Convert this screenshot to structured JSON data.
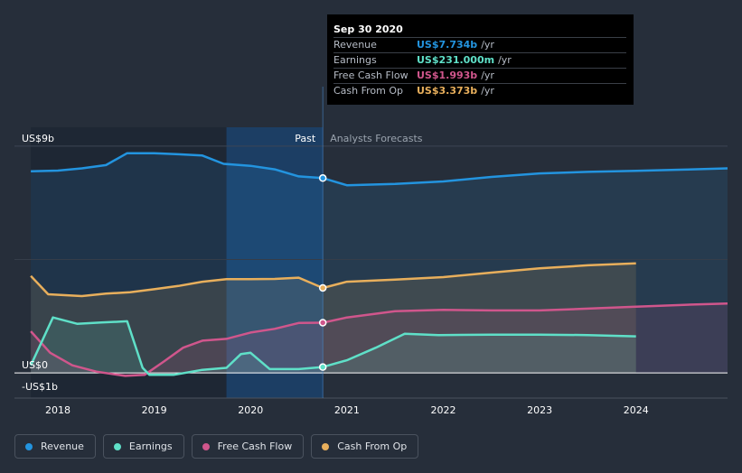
{
  "chart_data": {
    "type": "line",
    "title": "",
    "y_unit": "US$",
    "ylim": [
      -1,
      9.75
    ],
    "y_ticks": [
      {
        "value": 9,
        "label": "US$9b"
      },
      {
        "value": 0,
        "label": "US$0"
      },
      {
        "value": -1,
        "label": "-US$1b"
      }
    ],
    "xlim": [
      2017.55,
      2024.95
    ],
    "x_ticks": [
      {
        "value": 2018,
        "label": "2018"
      },
      {
        "value": 2019,
        "label": "2019"
      },
      {
        "value": 2020,
        "label": "2020"
      },
      {
        "value": 2021,
        "label": "2021"
      },
      {
        "value": 2022,
        "label": "2022"
      },
      {
        "value": 2023,
        "label": "2023"
      },
      {
        "value": 2024,
        "label": "2024"
      }
    ],
    "past_label": "Past",
    "forecast_label": "Analysts Forecasts",
    "divider_x": 2020.75,
    "highlight_range": [
      2019.75,
      2020.75
    ],
    "series": [
      {
        "name": "Revenue",
        "color": "#2394df",
        "past": [
          [
            2017.72,
            8.0
          ],
          [
            2018.0,
            8.03
          ],
          [
            2018.25,
            8.12
          ],
          [
            2018.5,
            8.25
          ],
          [
            2018.72,
            8.72
          ],
          [
            2019.0,
            8.72
          ],
          [
            2019.25,
            8.68
          ],
          [
            2019.5,
            8.63
          ],
          [
            2019.72,
            8.3
          ],
          [
            2020.0,
            8.22
          ],
          [
            2020.25,
            8.08
          ],
          [
            2020.5,
            7.8
          ],
          [
            2020.75,
            7.734
          ]
        ],
        "forecast": [
          [
            2020.75,
            7.734
          ],
          [
            2021.0,
            7.45
          ],
          [
            2021.5,
            7.5
          ],
          [
            2022.0,
            7.6
          ],
          [
            2022.5,
            7.78
          ],
          [
            2023.0,
            7.92
          ],
          [
            2023.5,
            7.98
          ],
          [
            2024.0,
            8.02
          ],
          [
            2024.5,
            8.07
          ],
          [
            2024.95,
            8.12
          ]
        ]
      },
      {
        "name": "Cash From Op",
        "color": "#e8af5c",
        "past": [
          [
            2017.72,
            3.85
          ],
          [
            2017.9,
            3.12
          ],
          [
            2018.25,
            3.05
          ],
          [
            2018.5,
            3.15
          ],
          [
            2018.75,
            3.2
          ],
          [
            2019.0,
            3.32
          ],
          [
            2019.25,
            3.45
          ],
          [
            2019.5,
            3.62
          ],
          [
            2019.75,
            3.72
          ],
          [
            2020.0,
            3.72
          ],
          [
            2020.25,
            3.73
          ],
          [
            2020.5,
            3.78
          ],
          [
            2020.75,
            3.373
          ]
        ],
        "forecast": [
          [
            2020.75,
            3.373
          ],
          [
            2021.0,
            3.62
          ],
          [
            2021.5,
            3.7
          ],
          [
            2022.0,
            3.8
          ],
          [
            2022.5,
            3.98
          ],
          [
            2023.0,
            4.15
          ],
          [
            2023.5,
            4.27
          ],
          [
            2024.0,
            4.35
          ]
        ]
      },
      {
        "name": "Free Cash Flow",
        "color": "#d0568c",
        "past": [
          [
            2017.72,
            1.65
          ],
          [
            2017.92,
            0.8
          ],
          [
            2018.15,
            0.3
          ],
          [
            2018.4,
            0.05
          ],
          [
            2018.7,
            -0.12
          ],
          [
            2018.9,
            -0.08
          ],
          [
            2019.1,
            0.45
          ],
          [
            2019.3,
            1.0
          ],
          [
            2019.5,
            1.28
          ],
          [
            2019.75,
            1.35
          ],
          [
            2020.0,
            1.6
          ],
          [
            2020.25,
            1.75
          ],
          [
            2020.5,
            1.98
          ],
          [
            2020.75,
            1.993
          ]
        ],
        "forecast": [
          [
            2020.75,
            1.993
          ],
          [
            2021.0,
            2.2
          ],
          [
            2021.5,
            2.45
          ],
          [
            2022.0,
            2.5
          ],
          [
            2022.5,
            2.48
          ],
          [
            2023.0,
            2.48
          ],
          [
            2023.5,
            2.55
          ],
          [
            2024.0,
            2.63
          ],
          [
            2024.5,
            2.7
          ],
          [
            2024.95,
            2.75
          ]
        ]
      },
      {
        "name": "Earnings",
        "color": "#5fe0c8",
        "past": [
          [
            2017.72,
            0.3
          ],
          [
            2017.95,
            2.2
          ],
          [
            2018.2,
            1.95
          ],
          [
            2018.45,
            2.0
          ],
          [
            2018.72,
            2.05
          ],
          [
            2018.88,
            0.2
          ],
          [
            2018.95,
            -0.08
          ],
          [
            2019.2,
            -0.08
          ],
          [
            2019.5,
            0.12
          ],
          [
            2019.75,
            0.2
          ],
          [
            2019.9,
            0.75
          ],
          [
            2020.0,
            0.8
          ],
          [
            2020.2,
            0.15
          ],
          [
            2020.5,
            0.15
          ],
          [
            2020.75,
            0.231
          ]
        ],
        "forecast": [
          [
            2020.75,
            0.231
          ],
          [
            2021.0,
            0.5
          ],
          [
            2021.3,
            1.0
          ],
          [
            2021.6,
            1.55
          ],
          [
            2021.95,
            1.5
          ],
          [
            2022.5,
            1.52
          ],
          [
            2023.0,
            1.52
          ],
          [
            2023.5,
            1.5
          ],
          [
            2024.0,
            1.45
          ]
        ]
      }
    ],
    "tooltip": {
      "date": "Sep 30 2020",
      "rows": [
        {
          "label": "Revenue",
          "value": "US$7.734b",
          "unit": "/yr",
          "color": "#2394df"
        },
        {
          "label": "Earnings",
          "value": "US$231.000m",
          "unit": "/yr",
          "color": "#5fe0c8"
        },
        {
          "label": "Free Cash Flow",
          "value": "US$1.993b",
          "unit": "/yr",
          "color": "#d0568c"
        },
        {
          "label": "Cash From Op",
          "value": "US$3.373b",
          "unit": "/yr",
          "color": "#e8af5c"
        }
      ]
    }
  },
  "legend": [
    {
      "label": "Revenue",
      "color": "#2394df"
    },
    {
      "label": "Earnings",
      "color": "#5fe0c8"
    },
    {
      "label": "Free Cash Flow",
      "color": "#d0568c"
    },
    {
      "label": "Cash From Op",
      "color": "#e8af5c"
    }
  ]
}
